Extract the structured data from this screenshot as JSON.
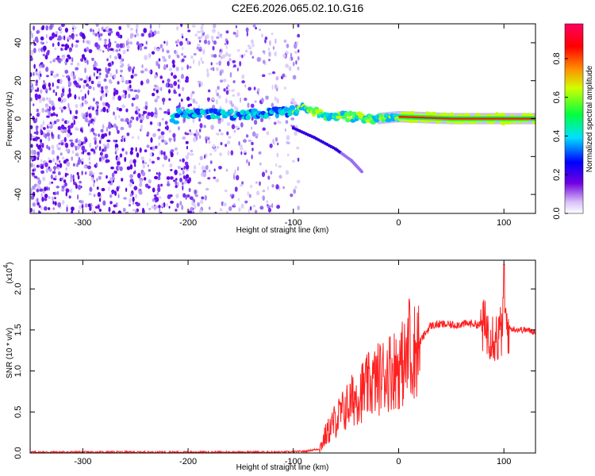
{
  "title": "C2E6.2026.065.02.10.G16",
  "chart_data": [
    {
      "type": "heatmap",
      "title": "C2E6.2026.065.02.10.G16",
      "xlabel": "Height of straight line (km)",
      "ylabel": "Frequency (Hz)",
      "xlim": [
        -350,
        130
      ],
      "ylim": [
        -50,
        50
      ],
      "xticks": [
        -300,
        -200,
        -100,
        0,
        100
      ],
      "yticks": [
        -40,
        -20,
        0,
        20,
        40
      ],
      "colorbar": {
        "label": "Normalized spectral amplitude",
        "range": [
          0.0,
          1.0
        ],
        "ticks": [
          "0.0",
          "0.2",
          "0.4",
          "0.6",
          "0.8"
        ],
        "colors": [
          "#e8d8f8",
          "#6a00d8",
          "#0000ff",
          "#00e0ff",
          "#00ff40",
          "#ffff00",
          "#ff8000",
          "#ff0000",
          "#ff0080"
        ]
      },
      "ridge": {
        "description_points": [
          [
            -210,
            3
          ],
          [
            -150,
            2
          ],
          [
            -100,
            4
          ],
          [
            -90,
            6
          ],
          [
            -70,
            2
          ],
          [
            -50,
            1
          ],
          [
            -20,
            0
          ],
          [
            0,
            1
          ],
          [
            50,
            0
          ],
          [
            100,
            0
          ],
          [
            130,
            0
          ]
        ],
        "branch": [
          [
            -100,
            -5
          ],
          [
            -80,
            -10
          ],
          [
            -60,
            -16
          ],
          [
            -45,
            -22
          ],
          [
            -35,
            -28
          ]
        ]
      }
    },
    {
      "type": "line",
      "xlabel": "Height of straight line (km)",
      "ylabel": "SNR (10 * v/v)",
      "scale_label": "(x10",
      "scale_exp": "4",
      "scale_close": ")",
      "xlim": [
        -350,
        130
      ],
      "ylim": [
        0,
        2.35
      ],
      "xticks": [
        -300,
        -200,
        -100,
        0,
        100
      ],
      "yticks": [
        "0.0",
        "0.5",
        "1.0",
        "1.5",
        "2.0"
      ],
      "series_color": "#ff2020",
      "series": [
        {
          "name": "SNR",
          "x": [
            -350,
            -300,
            -250,
            -200,
            -150,
            -110,
            -90,
            -75,
            -70,
            -65,
            -60,
            -50,
            -40,
            -30,
            -20,
            -10,
            0,
            10,
            20,
            25,
            30,
            40,
            50,
            60,
            70,
            80,
            85,
            90,
            95,
            100,
            105,
            110,
            120,
            130
          ],
          "y": [
            0.01,
            0.01,
            0.01,
            0.01,
            0.01,
            0.01,
            0.02,
            0.05,
            0.2,
            0.3,
            0.4,
            0.55,
            0.7,
            0.8,
            0.9,
            1.0,
            1.05,
            1.15,
            1.35,
            1.45,
            1.55,
            1.57,
            1.56,
            1.57,
            1.58,
            1.55,
            1.5,
            1.45,
            1.4,
            1.6,
            1.52,
            1.51,
            1.5,
            1.48
          ]
        }
      ]
    }
  ]
}
